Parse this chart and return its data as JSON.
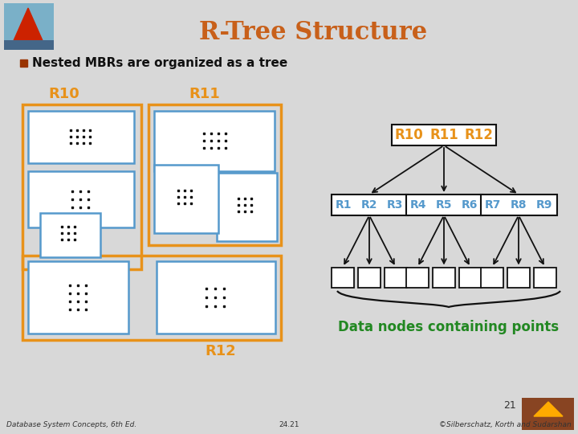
{
  "title": "R-Tree Structure",
  "title_color": "#c8601a",
  "title_fontsize": 22,
  "bg_color": "#d8d8d8",
  "bullet_text": "Nested MBRs are organized as a tree",
  "bullet_color": "#111111",
  "bullet_fontsize": 11,
  "orange_color": "#e8921a",
  "blue_color": "#5599cc",
  "black_color": "#111111",
  "green_color": "#228822",
  "label_R10": "R10",
  "label_R11": "R11",
  "label_R12": "R12",
  "data_nodes_text": "Data nodes containing points",
  "footer_left": "Database System Concepts, 6th Ed.",
  "footer_center": "24.21",
  "footer_right": "©Silberschatz, Korth and Sudarshan",
  "page_number": "21",
  "root_node_labels": [
    "R10",
    "R11",
    "R12"
  ],
  "level1_nodes": [
    [
      "R1",
      "R2",
      "R3"
    ],
    [
      "R4",
      "R5",
      "R6"
    ],
    [
      "R7",
      "R8",
      "R9"
    ]
  ]
}
